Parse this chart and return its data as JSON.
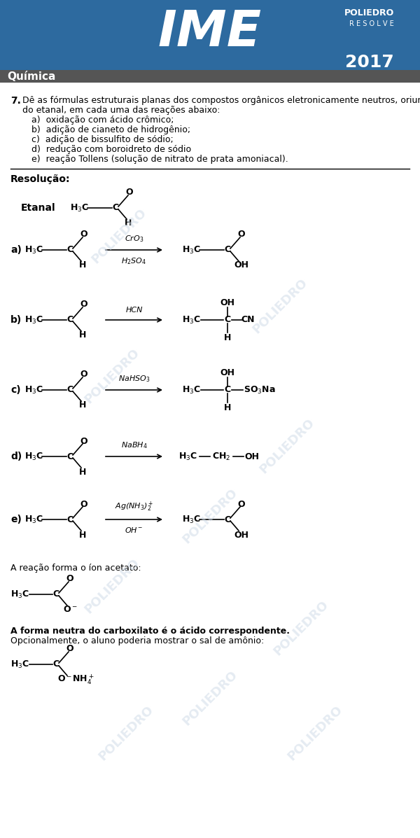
{
  "header_bg_color": "#2d6a9f",
  "header_text": "IME",
  "header_year": "2017",
  "poliedro_line1": "POLIEDRO",
  "poliedro_line2": "R E S O L V E",
  "subject_bg_color": "#555555",
  "subject_text": "Química",
  "question_number": "7.",
  "question_line1": "Dê as fórmulas estruturais planas dos compostos orgânicos eletronicamente neutros, oriundos",
  "question_line2": "do etanal, em cada uma das reações abaixo:",
  "items": [
    "a)  oxidação com ácido crômico;",
    "b)  adição de cianeto de hidrogênio;",
    "c)  adição de bissulfito de sódio;",
    "d)  redução com boroidreto de sódio",
    "e)  reação Tollens (solução de nitrato de prata amoniacal)."
  ],
  "resolucao_text": "Resolução:",
  "footer_text1": "A reação forma o íon acetato:",
  "footer_text2a": "A forma neutra do carboxilato é o ácido correspondente.",
  "footer_text2b": "Opcionalmente, o aluno poderia mostrar o sal de amônio:",
  "bg_color": "#ffffff",
  "watermark_color": "#d0dce8"
}
